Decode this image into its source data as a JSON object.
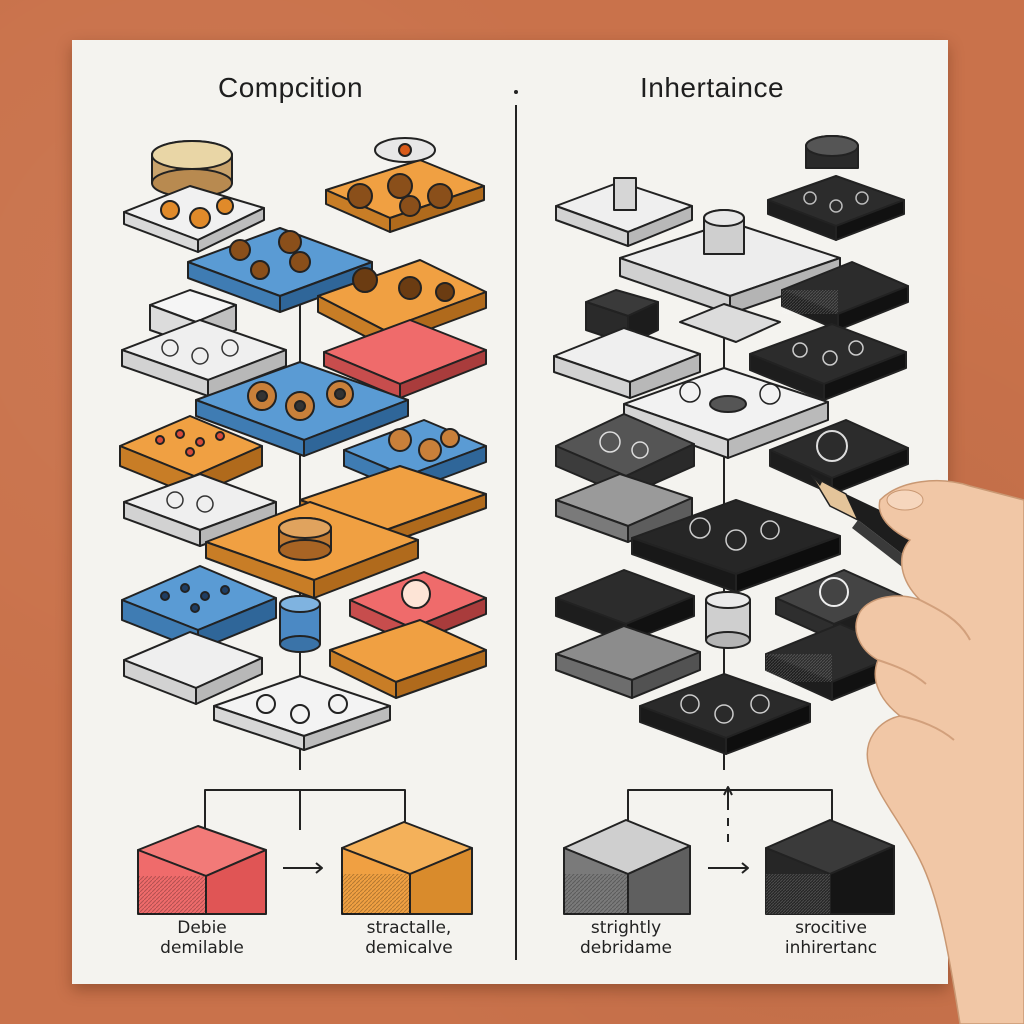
{
  "panels": {
    "left": {
      "title": "Compcition",
      "captions": [
        {
          "line1": "Debie",
          "line2": "demilable"
        },
        {
          "line1": "stractalle,",
          "line2": "demicalve"
        }
      ]
    },
    "right": {
      "title": "Inhertaince",
      "captions": [
        {
          "line1": "strightly",
          "line2": "debridame"
        },
        {
          "line1": "srocitive",
          "line2": "inhirertanc"
        }
      ]
    }
  },
  "colors": {
    "background": "#c9724b",
    "paper": "#f4f3ef",
    "orange": "#f0a042",
    "blue": "#5a9bd4",
    "red": "#ef6b6b",
    "light_gray": "#e6e6e6",
    "dark_gray": "#3a3a3a",
    "black": "#1f1f1f"
  }
}
